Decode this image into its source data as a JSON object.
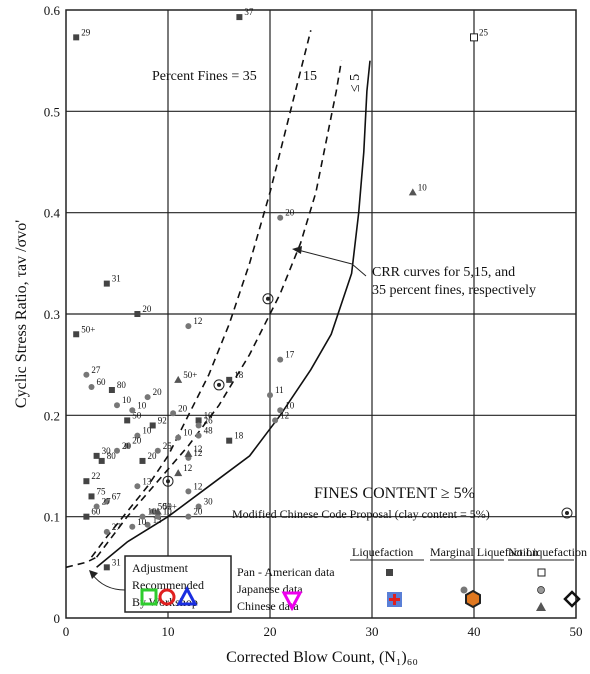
{
  "chart_data": {
    "type": "scatter",
    "xlabel": "Corrected Blow Count, (N₁)₆₀",
    "ylabel": "Cyclic Stress Ratio, τav /σvo'",
    "xlim": [
      0,
      50
    ],
    "ylim": [
      0,
      0.6
    ],
    "x_ticks": [
      "0",
      "10",
      "20",
      "30",
      "40",
      "50"
    ],
    "y_ticks": [
      "0",
      "0.1",
      "0.2",
      "0.3",
      "0.4",
      "0.5",
      "0.6"
    ],
    "grid": true,
    "curve_labels": {
      "percent_fines_prefix": "Percent Fines = 35",
      "fifteen": "15",
      "five": "≤ 5"
    },
    "curves": [
      {
        "name": "35",
        "dash": true,
        "points": [
          [
            2.5,
            0.06
          ],
          [
            4,
            0.08
          ],
          [
            6,
            0.105
          ],
          [
            8,
            0.13
          ],
          [
            10,
            0.16
          ],
          [
            12,
            0.2
          ],
          [
            14,
            0.24
          ],
          [
            16,
            0.29
          ],
          [
            18,
            0.35
          ],
          [
            20,
            0.42
          ],
          [
            22,
            0.5
          ],
          [
            24,
            0.58
          ]
        ]
      },
      {
        "name": "15",
        "dash": true,
        "points": [
          [
            3,
            0.06
          ],
          [
            6,
            0.1
          ],
          [
            9,
            0.135
          ],
          [
            12,
            0.17
          ],
          [
            15,
            0.21
          ],
          [
            18,
            0.26
          ],
          [
            21,
            0.32
          ],
          [
            23,
            0.37
          ],
          [
            24.5,
            0.42
          ],
          [
            25.5,
            0.47
          ],
          [
            26.5,
            0.52
          ],
          [
            27,
            0.55
          ]
        ]
      },
      {
        "name": "5",
        "dash": false,
        "points": [
          [
            3,
            0.05
          ],
          [
            6,
            0.075
          ],
          [
            10,
            0.1
          ],
          [
            14,
            0.13
          ],
          [
            18,
            0.16
          ],
          [
            21,
            0.2
          ],
          [
            24,
            0.245
          ],
          [
            26,
            0.28
          ],
          [
            28,
            0.34
          ],
          [
            28.7,
            0.4
          ],
          [
            29.2,
            0.46
          ],
          [
            29.5,
            0.52
          ],
          [
            29.8,
            0.55
          ]
        ]
      }
    ],
    "dashed_extension": {
      "points": [
        [
          0,
          0.05
        ],
        [
          2,
          0.055
        ],
        [
          3,
          0.06
        ]
      ]
    },
    "crr_annotation": {
      "line1": "CRR curves for 5,15, and",
      "line2": "35 percent fines, respectively",
      "pointers": [
        [
          23,
          0.365
        ],
        [
          27.5,
          0.34
        ]
      ],
      "anchor": [
        31,
        0.345
      ]
    },
    "fines_content_title": "FINES CONTENT ≥ 5%",
    "modified_chinese_code": "Modified Chinese Code Proposal (clay content = 5%)",
    "adjustment_box": {
      "line1": "Adjustment",
      "line2": "Recommended",
      "line3": "By Workshop"
    },
    "legend": {
      "columns": [
        "Liquefaction",
        "Marginal Liquefaction",
        "No Liquefaction"
      ],
      "rows": [
        "Pan - American data",
        "Japanese data",
        "Chinese data"
      ]
    },
    "series": [
      {
        "name": "Pan - American data",
        "marker": "square-filled",
        "points": [
          {
            "x": 1,
            "y": 0.573,
            "label": "29"
          },
          {
            "x": 17,
            "y": 0.593,
            "label": "37"
          },
          {
            "x": 4,
            "y": 0.33,
            "label": "31"
          },
          {
            "x": 7,
            "y": 0.3,
            "label": "20"
          },
          {
            "x": 1,
            "y": 0.28,
            "label": "50+"
          },
          {
            "x": 4.5,
            "y": 0.225,
            "label": "80"
          },
          {
            "x": 16,
            "y": 0.235,
            "label": "18"
          },
          {
            "x": 6,
            "y": 0.195,
            "label": "50"
          },
          {
            "x": 8.5,
            "y": 0.19,
            "label": "92"
          },
          {
            "x": 13,
            "y": 0.195,
            "label": "10"
          },
          {
            "x": 3,
            "y": 0.16,
            "label": "30"
          },
          {
            "x": 2,
            "y": 0.135,
            "label": "22"
          },
          {
            "x": 2.5,
            "y": 0.12,
            "label": "75"
          },
          {
            "x": 3.5,
            "y": 0.155,
            "label": "80"
          },
          {
            "x": 7.5,
            "y": 0.155,
            "label": "20"
          },
          {
            "x": 2,
            "y": 0.1,
            "label": "60"
          },
          {
            "x": 16,
            "y": 0.175,
            "label": "18"
          },
          {
            "x": 4,
            "y": 0.05,
            "label": "31"
          }
        ]
      },
      {
        "name": "Japanese data",
        "marker": "circle",
        "points": [
          {
            "x": 2,
            "y": 0.24,
            "label": "27"
          },
          {
            "x": 2.5,
            "y": 0.228,
            "label": "60"
          },
          {
            "x": 5,
            "y": 0.21,
            "label": "10"
          },
          {
            "x": 6.5,
            "y": 0.205,
            "label": "10"
          },
          {
            "x": 8,
            "y": 0.218,
            "label": "20"
          },
          {
            "x": 12,
            "y": 0.288,
            "label": "12"
          },
          {
            "x": 10.5,
            "y": 0.202,
            "label": "20"
          },
          {
            "x": 11,
            "y": 0.178,
            "label": "10"
          },
          {
            "x": 7,
            "y": 0.18,
            "label": "10"
          },
          {
            "x": 6,
            "y": 0.17,
            "label": "20"
          },
          {
            "x": 5,
            "y": 0.165,
            "label": "20"
          },
          {
            "x": 9,
            "y": 0.165,
            "label": "25"
          },
          {
            "x": 12,
            "y": 0.158,
            "label": "12"
          },
          {
            "x": 7,
            "y": 0.13,
            "label": "13"
          },
          {
            "x": 4,
            "y": 0.115,
            "label": "67"
          },
          {
            "x": 3,
            "y": 0.11,
            "label": "27"
          },
          {
            "x": 12,
            "y": 0.125,
            "label": "12"
          },
          {
            "x": 13,
            "y": 0.11,
            "label": "30"
          },
          {
            "x": 12,
            "y": 0.1,
            "label": "20"
          },
          {
            "x": 21,
            "y": 0.255,
            "label": "17"
          },
          {
            "x": 20,
            "y": 0.22,
            "label": "11"
          },
          {
            "x": 21,
            "y": 0.205,
            "label": "10"
          },
          {
            "x": 20.5,
            "y": 0.195,
            "label": "12"
          },
          {
            "x": 21,
            "y": 0.395,
            "label": "20"
          },
          {
            "x": 8,
            "y": 0.092,
            "label": "13"
          },
          {
            "x": 6.5,
            "y": 0.09,
            "label": "10"
          },
          {
            "x": 4,
            "y": 0.085,
            "label": "27"
          },
          {
            "x": 8.5,
            "y": 0.105,
            "label": "50+"
          },
          {
            "x": 7.5,
            "y": 0.1,
            "label": "10"
          },
          {
            "x": 9,
            "y": 0.1,
            "label": "10"
          },
          {
            "x": 13,
            "y": 0.19,
            "label": "26"
          },
          {
            "x": 13,
            "y": 0.18,
            "label": "48"
          }
        ]
      },
      {
        "name": "Chinese data",
        "marker": "triangle-filled",
        "points": [
          {
            "x": 11,
            "y": 0.235,
            "label": "50+"
          },
          {
            "x": 12,
            "y": 0.162,
            "label": "12"
          },
          {
            "x": 11,
            "y": 0.143,
            "label": "12"
          },
          {
            "x": 34,
            "y": 0.42,
            "label": "10"
          },
          {
            "x": 9,
            "y": 0.105,
            "label": "50+"
          }
        ]
      },
      {
        "name": "No Liquefaction Pan-American",
        "marker": "square-open",
        "points": [
          {
            "x": 40,
            "y": 0.573,
            "label": "25"
          }
        ]
      },
      {
        "name": "Modified Chinese Code",
        "marker": "double-circle",
        "points": [
          {
            "x": 19.8,
            "y": 0.315,
            "label": ""
          },
          {
            "x": 15,
            "y": 0.23,
            "label": ""
          },
          {
            "x": 10,
            "y": 0.135,
            "label": ""
          }
        ]
      }
    ]
  }
}
